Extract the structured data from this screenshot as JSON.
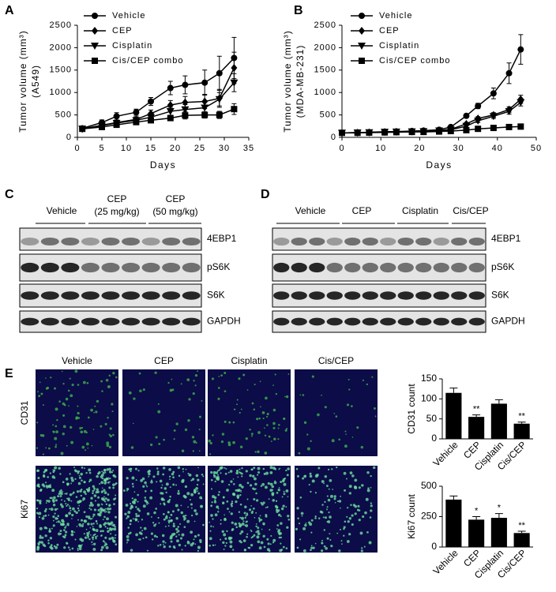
{
  "panels": {
    "a": "A",
    "b": "B",
    "c": "C",
    "d": "D",
    "e": "E"
  },
  "chart_data": [
    {
      "type": "line",
      "ylabel": "Tumor volume (mm³)",
      "ylabel2": "(A549)",
      "xlabel": "Days",
      "x": [
        1,
        5,
        8,
        12,
        15,
        19,
        22,
        26,
        29,
        32
      ],
      "xlim": [
        0,
        35
      ],
      "xticks": [
        0,
        5,
        10,
        15,
        20,
        25,
        30,
        35
      ],
      "ylim": [
        0,
        2500
      ],
      "yticks": [
        0,
        500,
        1000,
        1500,
        2000,
        2500
      ],
      "series": [
        {
          "name": "Vehicle",
          "color": "#000000",
          "marker": "circle",
          "values": [
            200,
            330,
            470,
            560,
            800,
            1100,
            1170,
            1220,
            1430,
            1770
          ],
          "errors": [
            20,
            60,
            80,
            70,
            90,
            150,
            200,
            280,
            380,
            460
          ]
        },
        {
          "name": "CEP",
          "color": "#000000",
          "marker": "diamond",
          "values": [
            190,
            270,
            330,
            400,
            530,
            720,
            780,
            800,
            870,
            1550
          ],
          "errors": [
            20,
            40,
            50,
            60,
            80,
            100,
            130,
            160,
            200,
            350
          ]
        },
        {
          "name": "Cisplatin",
          "color": "#000000",
          "marker": "triangle",
          "values": [
            190,
            260,
            320,
            380,
            450,
            580,
            620,
            660,
            850,
            1220
          ],
          "errors": [
            20,
            40,
            50,
            50,
            60,
            90,
            110,
            120,
            150,
            200
          ]
        },
        {
          "name": "Cis/CEP combo",
          "color": "#000000",
          "marker": "square",
          "values": [
            190,
            230,
            280,
            340,
            380,
            430,
            490,
            500,
            500,
            630
          ],
          "errors": [
            20,
            30,
            40,
            40,
            50,
            60,
            80,
            70,
            80,
            120
          ]
        }
      ]
    },
    {
      "type": "line",
      "ylabel": "Tumor volume (mm³)",
      "ylabel2": "(MDA-MB-231)",
      "xlabel": "Days",
      "x": [
        0,
        4,
        7,
        11,
        14,
        18,
        21,
        25,
        28,
        32,
        35,
        39,
        43,
        46
      ],
      "xlim": [
        0,
        50
      ],
      "xticks": [
        0,
        10,
        20,
        30,
        40,
        50
      ],
      "ylim": [
        0,
        2500
      ],
      "yticks": [
        0,
        500,
        1000,
        1500,
        2000,
        2500
      ],
      "series": [
        {
          "name": "Vehicle",
          "color": "#000000",
          "marker": "circle",
          "values": [
            100,
            105,
            115,
            125,
            130,
            140,
            150,
            170,
            230,
            480,
            700,
            980,
            1430,
            1960
          ],
          "errors": [
            10,
            10,
            10,
            10,
            10,
            10,
            15,
            20,
            30,
            40,
            60,
            120,
            230,
            330
          ]
        },
        {
          "name": "CEP",
          "color": "#000000",
          "marker": "diamond",
          "values": [
            100,
            105,
            110,
            120,
            125,
            130,
            140,
            150,
            180,
            300,
            420,
            500,
            620,
            850
          ],
          "errors": [
            10,
            10,
            10,
            10,
            10,
            10,
            10,
            15,
            20,
            30,
            40,
            50,
            60,
            90
          ]
        },
        {
          "name": "Cisplatin",
          "color": "#000000",
          "marker": "triangle",
          "values": [
            100,
            105,
            110,
            120,
            125,
            130,
            135,
            150,
            170,
            250,
            370,
            470,
            580,
            780
          ],
          "errors": [
            10,
            10,
            10,
            10,
            10,
            10,
            10,
            15,
            20,
            30,
            40,
            50,
            60,
            80
          ]
        },
        {
          "name": "Cis/CEP combo",
          "color": "#000000",
          "marker": "square",
          "values": [
            100,
            100,
            105,
            110,
            115,
            120,
            120,
            130,
            140,
            160,
            190,
            210,
            230,
            240
          ],
          "errors": [
            10,
            10,
            10,
            10,
            10,
            10,
            10,
            10,
            10,
            15,
            15,
            20,
            20,
            25
          ]
        }
      ]
    },
    {
      "type": "bar",
      "ylabel": "CD31 count",
      "categories": [
        "Vehicle",
        "CEP",
        "Cisplatin",
        "Cis/CEP"
      ],
      "values": [
        115,
        55,
        88,
        38
      ],
      "errors": [
        12,
        5,
        10,
        4
      ],
      "annotations": [
        null,
        "**",
        null,
        "**"
      ],
      "color": "#000000",
      "ylim": [
        0,
        150
      ],
      "yticks": [
        0,
        50,
        100,
        150
      ]
    },
    {
      "type": "bar",
      "ylabel": "Ki67 count",
      "categories": [
        "Vehicle",
        "CEP",
        "Cisplatin",
        "Cis/CEP"
      ],
      "values": [
        390,
        225,
        240,
        115
      ],
      "errors": [
        30,
        25,
        35,
        15
      ],
      "annotations": [
        null,
        "*",
        "*",
        "**"
      ],
      "color": "#000000",
      "ylim": [
        0,
        500
      ],
      "yticks": [
        0,
        250,
        500
      ]
    }
  ],
  "blot_c": {
    "groups": [
      [
        "Vehicle"
      ],
      [
        "CEP",
        "(25 mg/kg)"
      ],
      [
        "CEP",
        "(50 mg/kg)"
      ]
    ],
    "rows": [
      "4EBP1",
      "pS6K",
      "S6K",
      "GAPDH"
    ]
  },
  "blot_d": {
    "groups": [
      "Vehicle",
      "CEP",
      "Cisplatin",
      "Cis/CEP"
    ],
    "rows": [
      "4EBP1",
      "pS6K",
      "S6K",
      "GAPDH"
    ]
  },
  "microscopy": {
    "columns": [
      "Vehicle",
      "CEP",
      "Cisplatin",
      "Cis/CEP"
    ],
    "rows": [
      "CD31",
      "Ki67"
    ]
  }
}
